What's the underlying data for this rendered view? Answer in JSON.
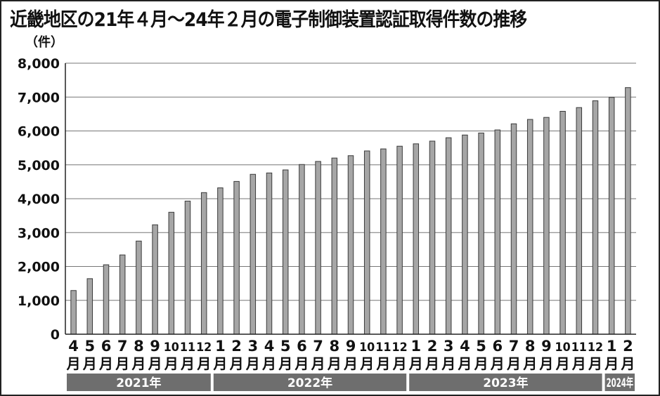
{
  "title": "近畿地区の21年４月～24年２月の電子制御装置認証取得件数の推移",
  "unit_label": "（件）",
  "colors": {
    "bar_fill": "#a6a6a6",
    "bar_stroke": "#3a3a3a",
    "grid": "#777777",
    "year_band": "#6e6e6e"
  },
  "chart_data": {
    "type": "bar",
    "title": "近畿地区の21年４月～24年２月の電子制御装置認証取得件数の推移",
    "ylabel": "（件）",
    "xlabel": "",
    "ylim": [
      0,
      8000
    ],
    "yticks": [
      0,
      1000,
      2000,
      3000,
      4000,
      5000,
      6000,
      7000,
      8000
    ],
    "ytick_labels": [
      "0",
      "1,000",
      "2,000",
      "3,000",
      "4,000",
      "5,000",
      "6,000",
      "7,000",
      "8,000"
    ],
    "grid": true,
    "categories": [
      "4月",
      "5月",
      "6月",
      "7月",
      "8月",
      "9月",
      "10月",
      "11月",
      "12月",
      "1月",
      "2月",
      "3月",
      "4月",
      "5月",
      "6月",
      "7月",
      "8月",
      "9月",
      "10月",
      "11月",
      "12月",
      "1月",
      "2月",
      "3月",
      "4月",
      "5月",
      "6月",
      "7月",
      "8月",
      "9月",
      "10月",
      "11月",
      "12月",
      "1月",
      "2月"
    ],
    "month_numbers": [
      "4",
      "5",
      "6",
      "7",
      "8",
      "9",
      "10",
      "11",
      "12",
      "1",
      "2",
      "3",
      "4",
      "5",
      "6",
      "7",
      "8",
      "9",
      "10",
      "11",
      "12",
      "1",
      "2",
      "3",
      "4",
      "5",
      "6",
      "7",
      "8",
      "9",
      "10",
      "11",
      "12",
      "1",
      "2"
    ],
    "month_suffix": "月",
    "values": [
      1290,
      1640,
      2050,
      2340,
      2750,
      3230,
      3600,
      3930,
      4180,
      4320,
      4510,
      4720,
      4760,
      4850,
      5010,
      5100,
      5200,
      5270,
      5410,
      5470,
      5550,
      5620,
      5700,
      5800,
      5880,
      5940,
      6030,
      6210,
      6340,
      6400,
      6580,
      6690,
      6890,
      6990,
      7280
    ],
    "year_groups": [
      {
        "label": "2021年",
        "start": 0,
        "count": 9
      },
      {
        "label": "2022年",
        "start": 9,
        "count": 12
      },
      {
        "label": "2023年",
        "start": 21,
        "count": 12
      },
      {
        "label": "2024年",
        "start": 33,
        "count": 2
      }
    ]
  }
}
